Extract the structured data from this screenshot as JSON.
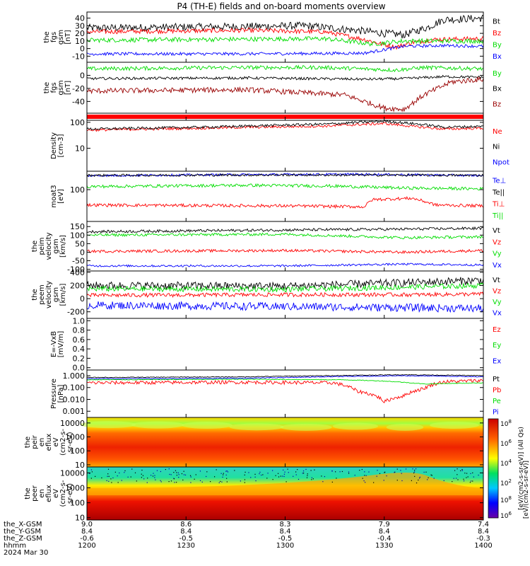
{
  "title": "P4 (TH-E) fields and on-board moments overview",
  "colors": {
    "black": "#000000",
    "red": "#ff0000",
    "green": "#00dd00",
    "blue": "#0000ff",
    "darkred": "#990000"
  },
  "chart_data": {
    "type": "line",
    "time_axis": {
      "ticks": [
        "1200",
        "1230",
        "1300",
        "1330",
        "1400"
      ],
      "range_hhmm": [
        "1200",
        "1400"
      ],
      "date": "2024 Mar 30",
      "rows": [
        {
          "label": "the_X-GSM",
          "values": [
            "9.0",
            "8.6",
            "8.3",
            "7.9",
            "7.4"
          ]
        },
        {
          "label": "the_Y-GSM",
          "values": [
            "8.4",
            "8.4",
            "8.4",
            "8.4",
            "8.4"
          ]
        },
        {
          "label": "the_Z-GSM",
          "values": [
            "-0.6",
            "-0.5",
            "-0.5",
            "-0.4",
            "-0.3"
          ]
        },
        {
          "label": "hhmm",
          "values": [
            "1200",
            "1230",
            "1300",
            "1330",
            "1400"
          ]
        }
      ]
    },
    "panels": [
      {
        "id": "fgs",
        "ylabel": [
          "the",
          "fgs",
          "gsm",
          "[nT]"
        ],
        "ylim": [
          -18,
          48
        ],
        "scale": "linear",
        "yticks": [
          "40",
          "30",
          "20",
          "10",
          "0",
          "-10"
        ],
        "series": [
          {
            "name": "Bt",
            "color": "black",
            "points": [
              [
                0,
                27
              ],
              [
                0.2,
                28
              ],
              [
                0.4,
                29
              ],
              [
                0.55,
                30
              ],
              [
                0.68,
                24
              ],
              [
                0.75,
                20
              ],
              [
                0.8,
                18
              ],
              [
                0.86,
                28
              ],
              [
                0.9,
                38
              ],
              [
                1,
                40
              ]
            ],
            "noise": 5
          },
          {
            "name": "Bz",
            "color": "red",
            "points": [
              [
                0,
                22
              ],
              [
                0.2,
                23
              ],
              [
                0.4,
                24
              ],
              [
                0.6,
                22
              ],
              [
                0.7,
                12
              ],
              [
                0.75,
                5
              ],
              [
                0.78,
                2
              ],
              [
                0.82,
                8
              ],
              [
                0.88,
                12
              ],
              [
                1,
                13
              ]
            ],
            "noise": 3
          },
          {
            "name": "By",
            "color": "green",
            "points": [
              [
                0,
                11
              ],
              [
                0.3,
                12
              ],
              [
                0.6,
                13
              ],
              [
                0.72,
                6
              ],
              [
                0.8,
                10
              ],
              [
                1,
                10
              ]
            ],
            "noise": 3
          },
          {
            "name": "Bx",
            "color": "blue",
            "points": [
              [
                0,
                -7
              ],
              [
                0.4,
                -7
              ],
              [
                0.7,
                -6
              ],
              [
                0.8,
                3
              ],
              [
                0.9,
                4
              ],
              [
                1,
                3
              ]
            ],
            "noise": 2
          }
        ]
      },
      {
        "id": "fgs-gsm-2",
        "ylabel": [
          "the",
          "fgs",
          "gsm",
          "[nT]"
        ],
        "ylim": [
          -58,
          20
        ],
        "scale": "linear",
        "yticks": [
          "0",
          "-20",
          "-40"
        ],
        "series": [
          {
            "name": "By",
            "color": "green",
            "points": [
              [
                0,
                10
              ],
              [
                0.4,
                12
              ],
              [
                0.6,
                12
              ],
              [
                0.78,
                8
              ],
              [
                0.85,
                12
              ],
              [
                1,
                10
              ]
            ],
            "noise": 3
          },
          {
            "name": "Bx",
            "color": "black",
            "points": [
              [
                0,
                -5
              ],
              [
                0.4,
                -4
              ],
              [
                0.7,
                -6
              ],
              [
                0.8,
                -5
              ],
              [
                0.9,
                -2
              ],
              [
                1,
                -3
              ]
            ],
            "noise": 2
          },
          {
            "name": "Bz",
            "color": "darkred",
            "points": [
              [
                0,
                -24
              ],
              [
                0.4,
                -22
              ],
              [
                0.65,
                -30
              ],
              [
                0.75,
                -50
              ],
              [
                0.8,
                -52
              ],
              [
                0.85,
                -30
              ],
              [
                0.92,
                -10
              ],
              [
                1,
                -6
              ]
            ],
            "noise": 4
          }
        ]
      },
      {
        "id": "mode-bar",
        "ylabel": [],
        "ylim": [
          0,
          1
        ],
        "scale": "linear",
        "yticks": [],
        "series": []
      },
      {
        "id": "density",
        "ylabel": [
          "Density",
          "[cm-3]"
        ],
        "ylim": [
          1.3,
          120
        ],
        "scale": "log",
        "yticks": [
          "100",
          "10"
        ],
        "series": [
          {
            "name": "Ne",
            "color": "red",
            "points": [
              [
                0,
                50
              ],
              [
                0.3,
                60
              ],
              [
                0.6,
                72
              ],
              [
                0.75,
                90
              ],
              [
                0.82,
                70
              ],
              [
                0.9,
                55
              ],
              [
                1,
                60
              ]
            ],
            "noise": 0.05
          },
          {
            "name": "Ni",
            "color": "black",
            "points": [
              [
                0,
                55
              ],
              [
                0.3,
                65
              ],
              [
                0.6,
                85
              ],
              [
                0.75,
                110
              ],
              [
                0.82,
                90
              ],
              [
                0.9,
                65
              ],
              [
                1,
                70
              ]
            ],
            "noise": 0.05
          },
          {
            "name": "Npot",
            "color": "blue",
            "points": [],
            "noise": 0
          }
        ]
      },
      {
        "id": "temperature",
        "ylabel": [
          "moat3",
          "[eV]"
        ],
        "ylim": [
          15,
          300
        ],
        "scale": "log",
        "yticks": [
          "100"
        ],
        "series": [
          {
            "name": "Te⊥",
            "color": "blue",
            "points": [
              [
                0,
                230
              ],
              [
                0.4,
                245
              ],
              [
                0.7,
                250
              ],
              [
                0.85,
                240
              ],
              [
                1,
                230
              ]
            ],
            "noise": 0.03
          },
          {
            "name": "Te||",
            "color": "black",
            "points": [
              [
                0,
                235
              ],
              [
                0.5,
                240
              ],
              [
                1,
                235
              ]
            ],
            "noise": 0.03
          },
          {
            "name": "Ti⊥",
            "color": "red",
            "points": [
              [
                0,
                40
              ],
              [
                0.5,
                38
              ],
              [
                0.7,
                36
              ],
              [
                0.72,
                55
              ],
              [
                0.82,
                60
              ],
              [
                0.88,
                40
              ],
              [
                1,
                38
              ]
            ],
            "noise": 0.04
          },
          {
            "name": "Ti||",
            "color": "green",
            "points": [
              [
                0,
                120
              ],
              [
                0.4,
                130
              ],
              [
                0.6,
                125
              ],
              [
                0.8,
                110
              ],
              [
                1,
                105
              ]
            ],
            "noise": 0.04
          }
        ]
      },
      {
        "id": "peim-velocity",
        "ylabel": [
          "the",
          "peim",
          "velocity",
          "gsm",
          "[km/s]"
        ],
        "ylim": [
          -110,
          180
        ],
        "scale": "linear",
        "yticks": [
          "150",
          "100",
          "50",
          "0",
          "-50",
          "-100"
        ],
        "series": [
          {
            "name": "Vt",
            "color": "black",
            "points": [
              [
                0,
                120
              ],
              [
                0.5,
                130
              ],
              [
                0.8,
                135
              ],
              [
                1,
                140
              ]
            ],
            "noise": 8
          },
          {
            "name": "Vz",
            "color": "red",
            "points": [
              [
                0,
                5
              ],
              [
                0.5,
                10
              ],
              [
                0.8,
                0
              ],
              [
                1,
                10
              ]
            ],
            "noise": 8
          },
          {
            "name": "Vy",
            "color": "green",
            "points": [
              [
                0,
                100
              ],
              [
                0.5,
                105
              ],
              [
                0.8,
                85
              ],
              [
                1,
                90
              ]
            ],
            "noise": 8
          },
          {
            "name": "Vx",
            "color": "blue",
            "points": [
              [
                0,
                -80
              ],
              [
                0.5,
                -80
              ],
              [
                0.8,
                -70
              ],
              [
                1,
                -75
              ]
            ],
            "noise": 6
          }
        ]
      },
      {
        "id": "peem-velocity",
        "ylabel": [
          "the",
          "peem",
          "velocity",
          "gsm",
          "[km/s]"
        ],
        "ylim": [
          -300,
          420
        ],
        "scale": "linear",
        "yticks": [
          "400",
          "200",
          "0",
          "-200"
        ],
        "series": [
          {
            "name": "Vt",
            "color": "black",
            "points": [
              [
                0,
                200
              ],
              [
                0.5,
                190
              ],
              [
                0.85,
                250
              ],
              [
                1,
                280
              ]
            ],
            "noise": 60
          },
          {
            "name": "Vz",
            "color": "red",
            "points": [
              [
                0,
                50
              ],
              [
                0.5,
                60
              ],
              [
                0.85,
                60
              ],
              [
                1,
                70
              ]
            ],
            "noise": 30
          },
          {
            "name": "Vy",
            "color": "green",
            "points": [
              [
                0,
                150
              ],
              [
                0.5,
                140
              ],
              [
                0.85,
                180
              ],
              [
                1,
                200
              ]
            ],
            "noise": 40
          },
          {
            "name": "Vx",
            "color": "blue",
            "points": [
              [
                0,
                -100
              ],
              [
                0.5,
                -120
              ],
              [
                0.85,
                -140
              ],
              [
                1,
                -150
              ]
            ],
            "noise": 60
          }
        ]
      },
      {
        "id": "efield",
        "ylabel": [
          "E=-VxB",
          "[mV/m]"
        ],
        "ylim": [
          -0.05,
          1.05
        ],
        "scale": "linear",
        "yticks": [
          "1.0",
          "0.8",
          "0.6",
          "0.4",
          "0.2",
          "0.0"
        ],
        "series": [
          {
            "name": "Ez",
            "color": "red",
            "points": [],
            "noise": 0
          },
          {
            "name": "Ey",
            "color": "green",
            "points": [],
            "noise": 0
          },
          {
            "name": "Ex",
            "color": "blue",
            "points": [],
            "noise": 0
          }
        ]
      },
      {
        "id": "pressure",
        "ylabel": [
          "Pressure",
          "[nPa]"
        ],
        "ylim": [
          0.0003,
          3
        ],
        "scale": "log",
        "yticks": [
          "1.000",
          "0.100",
          "0.010",
          "0.001"
        ],
        "series": [
          {
            "name": "Pt",
            "color": "black",
            "points": [
              [
                0,
                0.7
              ],
              [
                0.4,
                0.8
              ],
              [
                0.7,
                1.1
              ],
              [
                0.8,
                1.2
              ],
              [
                1,
                1.0
              ]
            ],
            "noise": 0.03
          },
          {
            "name": "Pb",
            "color": "red",
            "points": [
              [
                0,
                0.25
              ],
              [
                0.4,
                0.28
              ],
              [
                0.62,
                0.25
              ],
              [
                0.68,
                0.05
              ],
              [
                0.75,
                0.006
              ],
              [
                0.8,
                0.02
              ],
              [
                0.85,
                0.08
              ],
              [
                0.9,
                0.3
              ],
              [
                1,
                0.4
              ]
            ],
            "noise": 0.15
          },
          {
            "name": "Pe",
            "color": "green",
            "points": [
              [
                0,
                0.45
              ],
              [
                0.4,
                0.5
              ],
              [
                0.65,
                0.45
              ],
              [
                0.75,
                0.35
              ],
              [
                0.85,
                0.2
              ],
              [
                1,
                0.25
              ]
            ],
            "noise": 0.03
          },
          {
            "name": "Pi",
            "color": "blue",
            "points": [
              [
                0,
                0.55
              ],
              [
                0.4,
                0.6
              ],
              [
                0.7,
                0.9
              ],
              [
                0.8,
                1.0
              ],
              [
                1,
                0.8
              ]
            ],
            "noise": 0.03
          }
        ]
      },
      {
        "id": "peir-spectrogram",
        "ylabel": [
          "the",
          "peir",
          "en",
          "eflux",
          "eV",
          "(cm2-s-",
          "sr-eV)"
        ],
        "ylim": [
          7,
          25000
        ],
        "scale": "log",
        "yticks": [
          "10000",
          "1000",
          "100",
          "10"
        ],
        "series": []
      },
      {
        "id": "peer-spectrogram",
        "ylabel": [
          "the",
          "peer",
          "en",
          "eflux",
          "eV",
          "(cm2-s-",
          "sr-eV)"
        ],
        "ylim": [
          7,
          25000
        ],
        "scale": "log",
        "yticks": [
          "10000",
          "1000",
          "100",
          "10"
        ],
        "series": []
      }
    ],
    "colorbar": {
      "labels": [
        "10^8",
        "10^6",
        "10^4",
        "10^2"
      ],
      "label_text": "[eV/(cm2-s-sr-eV)] (All Qs)",
      "label_text_2": "[eV/(cm2-s-sr-eV)]"
    }
  }
}
